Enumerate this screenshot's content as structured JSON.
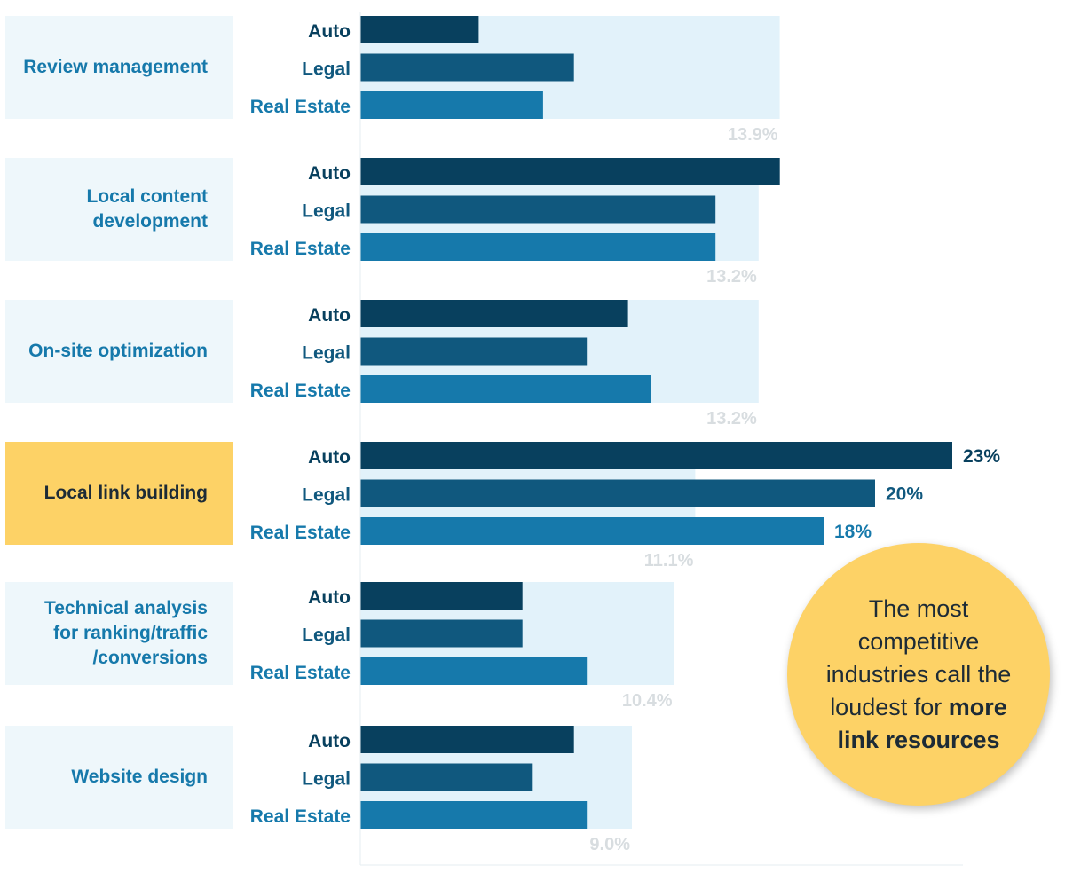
{
  "chart_data": {
    "type": "bar",
    "orientation": "horizontal",
    "categories": [
      "Review management",
      "Local content development",
      "On-site optimization",
      "Local link building",
      "Technical analysis for ranking/traffic /conversions",
      "Website design"
    ],
    "highlighted_category": "Local link building",
    "series": [
      {
        "name": "Auto",
        "color": "#08405e",
        "values": [
          4.6,
          16.3,
          10.4,
          23,
          6.3,
          8.3
        ]
      },
      {
        "name": "Legal",
        "color": "#10587e",
        "values": [
          8.3,
          13.8,
          8.8,
          20,
          6.3,
          6.7
        ]
      },
      {
        "name": "Real Estate",
        "color": "#1679ab",
        "values": [
          7.1,
          13.8,
          11.3,
          18,
          8.8,
          8.8
        ]
      }
    ],
    "average": {
      "values": [
        13.9,
        13.2,
        13.2,
        11.1,
        10.4,
        9.0
      ],
      "labels": [
        "13.9%",
        "13.2%",
        "13.2%",
        "11.1%",
        "10.4%",
        "9.0%"
      ],
      "color": "#e2f2fa"
    },
    "data_labels": {
      "3": [
        "23%",
        "20%",
        "18%"
      ]
    },
    "category_labels": [
      "Review management",
      "Local content \ndevelopment",
      "On-site optimization",
      "Local link building",
      "Technical analysis \nfor ranking/traffic\n/conversions",
      "Website design"
    ],
    "grid": false
  },
  "callout": {
    "text": "The most competitive industries call the loudest for ",
    "bold": "more link resources"
  }
}
